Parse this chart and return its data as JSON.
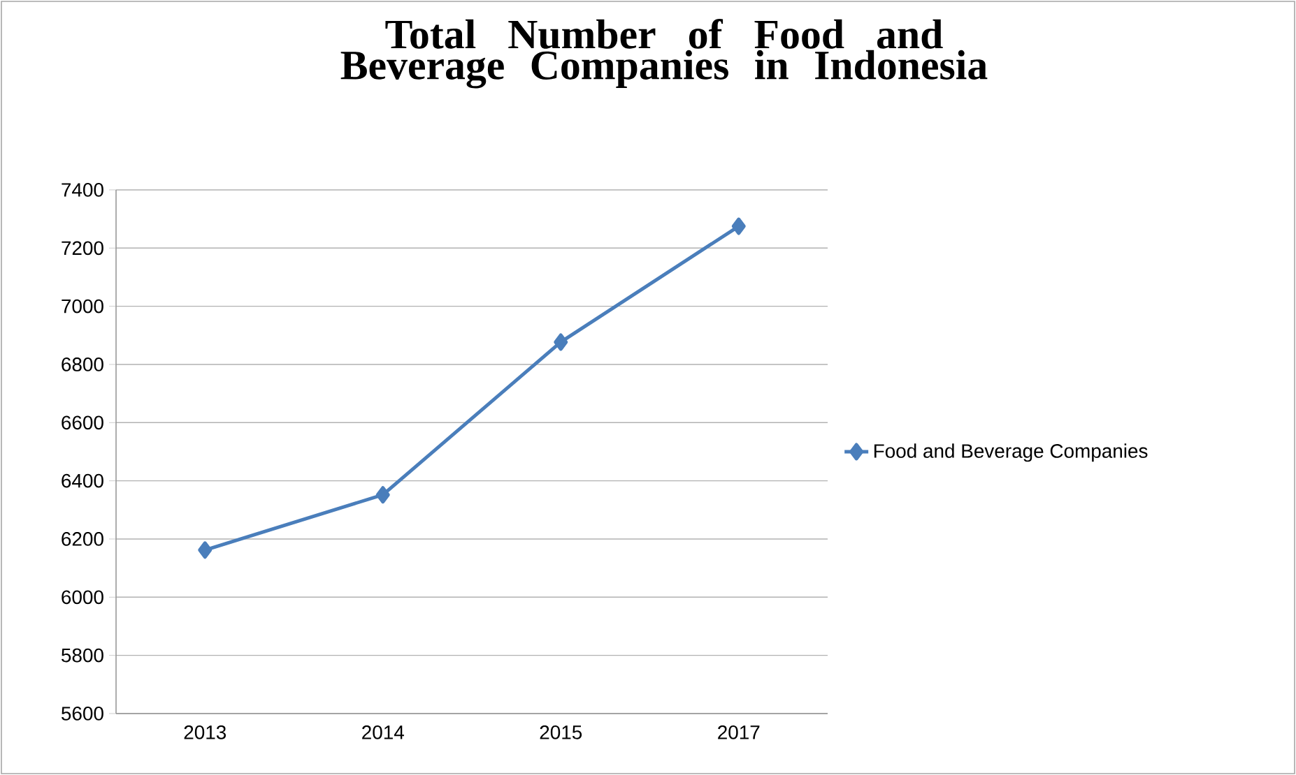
{
  "chart_data": {
    "type": "line",
    "title": "Total Number of Food and Beverage Companies in Indonesia",
    "categories": [
      "2013",
      "2014",
      "2015",
      "2017"
    ],
    "series": [
      {
        "name": "Food and Beverage Companies",
        "color": "#4a7ebb",
        "values": [
          6162,
          6352,
          6877,
          7275
        ]
      }
    ],
    "ylim": [
      5600,
      7400
    ],
    "yticks": [
      5600,
      5800,
      6000,
      6200,
      6400,
      6600,
      6800,
      7000,
      7200,
      7400
    ],
    "grid": "y",
    "legend": "right",
    "marker": "diamond",
    "line_style": "solid"
  }
}
